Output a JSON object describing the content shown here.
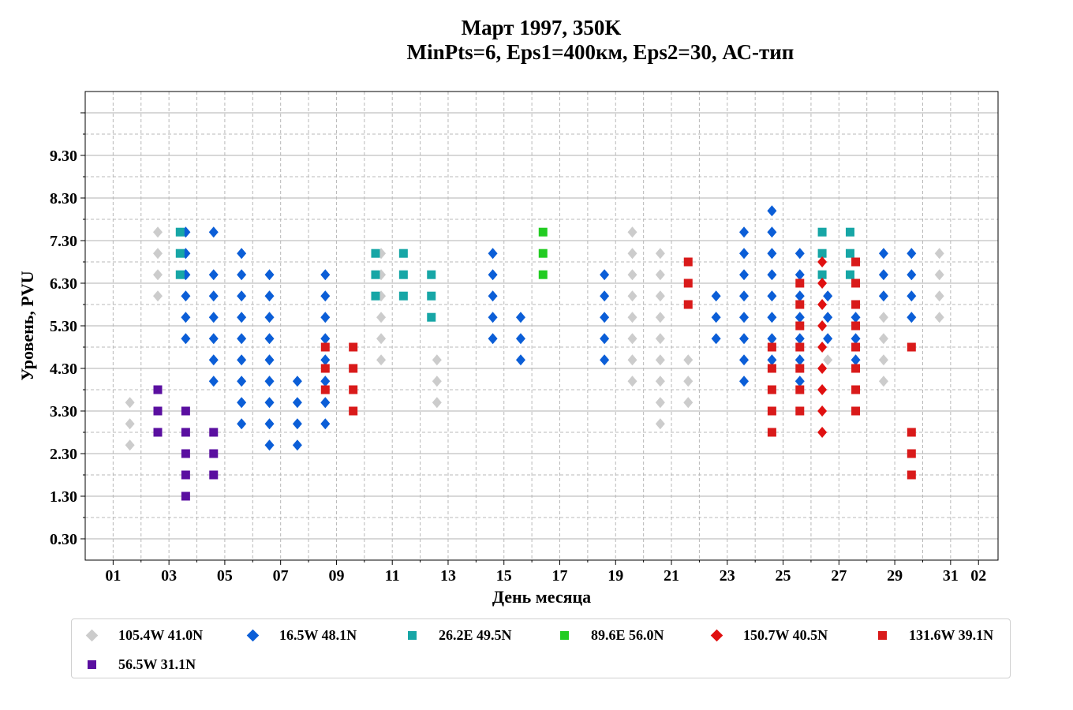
{
  "chart_data": {
    "type": "scatter",
    "title": "Март 1997, 350K",
    "subtitle": "MinPts=6, Eps1=400км, Eps2=30, АС-тип",
    "xlabel": "День месяца",
    "ylabel": "Уровень, PVU",
    "xlim": [
      0,
      32.7
    ],
    "ylim": [
      -0.2,
      10.8
    ],
    "x_tick_labels": [
      "01",
      "03",
      "05",
      "07",
      "09",
      "11",
      "13",
      "15",
      "17",
      "19",
      "21",
      "23",
      "25",
      "27",
      "29",
      "31",
      "02"
    ],
    "y_tick_labels": [
      "0.30",
      "1.30",
      "2.30",
      "3.30",
      "4.30",
      "5.30",
      "6.30",
      "7.30",
      "8.30",
      "9.30"
    ],
    "grid": true,
    "legend_position": "below",
    "series": [
      {
        "name": "105.4W 41.0N",
        "color": "#cccccc",
        "marker": "diamond",
        "points": [
          [
            1.6,
            2.5
          ],
          [
            1.6,
            3.0
          ],
          [
            1.6,
            3.5
          ],
          [
            2.6,
            6.0
          ],
          [
            2.6,
            6.5
          ],
          [
            2.6,
            7.0
          ],
          [
            2.6,
            7.5
          ],
          [
            10.6,
            4.5
          ],
          [
            10.6,
            5.0
          ],
          [
            10.6,
            5.5
          ],
          [
            10.6,
            6.0
          ],
          [
            10.6,
            6.5
          ],
          [
            10.6,
            7.0
          ],
          [
            12.6,
            3.5
          ],
          [
            12.6,
            4.0
          ],
          [
            12.6,
            4.5
          ],
          [
            19.6,
            4.0
          ],
          [
            19.6,
            4.5
          ],
          [
            19.6,
            5.0
          ],
          [
            19.6,
            5.5
          ],
          [
            19.6,
            6.0
          ],
          [
            19.6,
            6.5
          ],
          [
            19.6,
            7.0
          ],
          [
            19.6,
            7.5
          ],
          [
            20.6,
            3.0
          ],
          [
            20.6,
            3.5
          ],
          [
            20.6,
            4.0
          ],
          [
            20.6,
            4.5
          ],
          [
            20.6,
            5.0
          ],
          [
            20.6,
            5.5
          ],
          [
            20.6,
            6.0
          ],
          [
            20.6,
            6.5
          ],
          [
            20.6,
            7.0
          ],
          [
            21.6,
            3.5
          ],
          [
            21.6,
            4.0
          ],
          [
            21.6,
            4.5
          ],
          [
            26.6,
            4.5
          ],
          [
            26.6,
            5.0
          ],
          [
            26.6,
            5.5
          ],
          [
            26.6,
            6.0
          ],
          [
            28.6,
            4.0
          ],
          [
            28.6,
            4.5
          ],
          [
            28.6,
            5.0
          ],
          [
            28.6,
            5.5
          ],
          [
            28.6,
            6.0
          ],
          [
            28.6,
            6.5
          ],
          [
            30.6,
            5.5
          ],
          [
            30.6,
            6.0
          ],
          [
            30.6,
            6.5
          ],
          [
            30.6,
            7.0
          ]
        ]
      },
      {
        "name": "16.5W 48.1N",
        "color": "#0b5ed7",
        "marker": "diamond",
        "points": [
          [
            3.6,
            5.0
          ],
          [
            3.6,
            5.5
          ],
          [
            3.6,
            6.0
          ],
          [
            3.6,
            6.5
          ],
          [
            3.6,
            7.0
          ],
          [
            3.6,
            7.5
          ],
          [
            4.6,
            4.0
          ],
          [
            4.6,
            4.5
          ],
          [
            4.6,
            5.0
          ],
          [
            4.6,
            5.5
          ],
          [
            4.6,
            6.0
          ],
          [
            4.6,
            6.5
          ],
          [
            4.6,
            7.5
          ],
          [
            5.6,
            3.0
          ],
          [
            5.6,
            3.5
          ],
          [
            5.6,
            4.0
          ],
          [
            5.6,
            4.5
          ],
          [
            5.6,
            5.0
          ],
          [
            5.6,
            5.5
          ],
          [
            5.6,
            6.0
          ],
          [
            5.6,
            6.5
          ],
          [
            5.6,
            7.0
          ],
          [
            6.6,
            2.5
          ],
          [
            6.6,
            3.0
          ],
          [
            6.6,
            3.5
          ],
          [
            6.6,
            4.0
          ],
          [
            6.6,
            4.5
          ],
          [
            6.6,
            5.0
          ],
          [
            6.6,
            5.5
          ],
          [
            6.6,
            6.0
          ],
          [
            6.6,
            6.5
          ],
          [
            7.6,
            2.5
          ],
          [
            7.6,
            3.0
          ],
          [
            7.6,
            3.5
          ],
          [
            7.6,
            4.0
          ],
          [
            8.6,
            3.0
          ],
          [
            8.6,
            3.5
          ],
          [
            8.6,
            4.0
          ],
          [
            8.6,
            4.5
          ],
          [
            8.6,
            5.0
          ],
          [
            8.6,
            5.5
          ],
          [
            8.6,
            6.0
          ],
          [
            8.6,
            6.5
          ],
          [
            14.6,
            5.0
          ],
          [
            14.6,
            5.5
          ],
          [
            14.6,
            6.0
          ],
          [
            14.6,
            6.5
          ],
          [
            14.6,
            7.0
          ],
          [
            15.6,
            4.5
          ],
          [
            15.6,
            5.0
          ],
          [
            15.6,
            5.5
          ],
          [
            18.6,
            4.5
          ],
          [
            18.6,
            5.0
          ],
          [
            18.6,
            5.5
          ],
          [
            18.6,
            6.0
          ],
          [
            18.6,
            6.5
          ],
          [
            22.6,
            5.0
          ],
          [
            22.6,
            5.5
          ],
          [
            22.6,
            6.0
          ],
          [
            23.6,
            4.0
          ],
          [
            23.6,
            4.5
          ],
          [
            23.6,
            5.0
          ],
          [
            23.6,
            5.5
          ],
          [
            23.6,
            6.0
          ],
          [
            23.6,
            6.5
          ],
          [
            23.6,
            7.0
          ],
          [
            23.6,
            7.5
          ],
          [
            24.6,
            4.5
          ],
          [
            24.6,
            5.0
          ],
          [
            24.6,
            5.5
          ],
          [
            24.6,
            6.0
          ],
          [
            24.6,
            6.5
          ],
          [
            24.6,
            7.0
          ],
          [
            24.6,
            7.5
          ],
          [
            24.6,
            8.0
          ],
          [
            25.6,
            4.0
          ],
          [
            25.6,
            4.5
          ],
          [
            25.6,
            5.0
          ],
          [
            25.6,
            5.5
          ],
          [
            25.6,
            6.0
          ],
          [
            25.6,
            6.5
          ],
          [
            25.6,
            7.0
          ],
          [
            26.6,
            5.0
          ],
          [
            26.6,
            5.5
          ],
          [
            26.6,
            6.0
          ],
          [
            27.6,
            4.5
          ],
          [
            27.6,
            5.0
          ],
          [
            27.6,
            5.5
          ],
          [
            28.6,
            6.0
          ],
          [
            28.6,
            6.5
          ],
          [
            28.6,
            7.0
          ],
          [
            29.6,
            5.5
          ],
          [
            29.6,
            6.0
          ],
          [
            29.6,
            6.5
          ],
          [
            29.6,
            7.0
          ]
        ]
      },
      {
        "name": "26.2E 49.5N",
        "color": "#17a6a6",
        "marker": "square",
        "points": [
          [
            3.4,
            6.5
          ],
          [
            3.4,
            7.0
          ],
          [
            3.4,
            7.5
          ],
          [
            10.4,
            6.0
          ],
          [
            10.4,
            6.5
          ],
          [
            10.4,
            7.0
          ],
          [
            11.4,
            6.0
          ],
          [
            11.4,
            6.5
          ],
          [
            11.4,
            7.0
          ],
          [
            12.4,
            5.5
          ],
          [
            12.4,
            6.0
          ],
          [
            12.4,
            6.5
          ],
          [
            26.4,
            6.5
          ],
          [
            26.4,
            7.0
          ],
          [
            26.4,
            7.5
          ],
          [
            27.4,
            6.5
          ],
          [
            27.4,
            7.0
          ],
          [
            27.4,
            7.5
          ]
        ]
      },
      {
        "name": "89.6E 56.0N",
        "color": "#22cc22",
        "marker": "square",
        "points": [
          [
            16.4,
            6.5
          ],
          [
            16.4,
            7.0
          ],
          [
            16.4,
            7.5
          ]
        ]
      },
      {
        "name": "150.7W 40.5N",
        "color": "#e01010",
        "marker": "diamond",
        "points": [
          [
            26.4,
            2.8
          ],
          [
            26.4,
            3.3
          ],
          [
            26.4,
            3.8
          ],
          [
            26.4,
            4.3
          ],
          [
            26.4,
            4.8
          ],
          [
            26.4,
            5.3
          ],
          [
            26.4,
            5.8
          ],
          [
            26.4,
            6.3
          ],
          [
            26.4,
            6.8
          ]
        ]
      },
      {
        "name": "131.6W 39.1N",
        "color": "#d91a1a",
        "marker": "square",
        "points": [
          [
            8.6,
            3.8
          ],
          [
            8.6,
            4.3
          ],
          [
            8.6,
            4.8
          ],
          [
            9.6,
            3.3
          ],
          [
            9.6,
            3.8
          ],
          [
            9.6,
            4.3
          ],
          [
            9.6,
            4.8
          ],
          [
            21.6,
            5.8
          ],
          [
            21.6,
            6.3
          ],
          [
            21.6,
            6.8
          ],
          [
            24.6,
            2.8
          ],
          [
            24.6,
            3.3
          ],
          [
            24.6,
            3.8
          ],
          [
            24.6,
            4.3
          ],
          [
            24.6,
            4.8
          ],
          [
            25.6,
            3.3
          ],
          [
            25.6,
            3.8
          ],
          [
            25.6,
            4.3
          ],
          [
            25.6,
            4.8
          ],
          [
            25.6,
            5.3
          ],
          [
            25.6,
            5.8
          ],
          [
            25.6,
            6.3
          ],
          [
            27.6,
            3.3
          ],
          [
            27.6,
            3.8
          ],
          [
            27.6,
            4.3
          ],
          [
            27.6,
            4.8
          ],
          [
            27.6,
            5.3
          ],
          [
            27.6,
            5.8
          ],
          [
            27.6,
            6.3
          ],
          [
            27.6,
            6.8
          ],
          [
            29.6,
            1.8
          ],
          [
            29.6,
            2.3
          ],
          [
            29.6,
            2.8
          ],
          [
            29.6,
            4.8
          ]
        ]
      },
      {
        "name": "56.5W 31.1N",
        "color": "#5a0fa0",
        "marker": "square",
        "points": [
          [
            2.6,
            2.8
          ],
          [
            2.6,
            3.3
          ],
          [
            2.6,
            3.8
          ],
          [
            3.6,
            1.3
          ],
          [
            3.6,
            1.8
          ],
          [
            3.6,
            2.3
          ],
          [
            3.6,
            2.8
          ],
          [
            3.6,
            3.3
          ],
          [
            4.6,
            1.8
          ],
          [
            4.6,
            2.3
          ],
          [
            4.6,
            2.8
          ]
        ]
      }
    ]
  }
}
